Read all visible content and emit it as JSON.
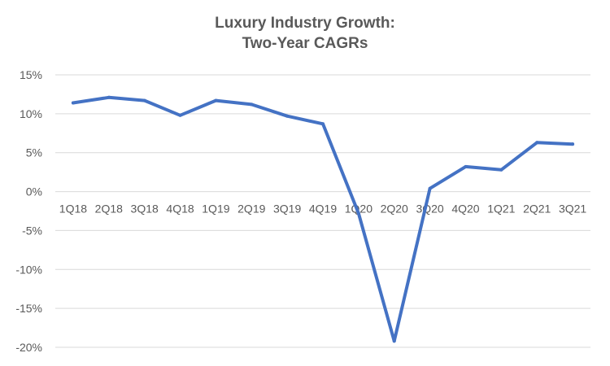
{
  "chart_data": {
    "type": "line",
    "title_lines": [
      "Luxury Industry Growth:",
      "Two-Year CAGRs"
    ],
    "xlabel": "",
    "ylabel": "",
    "categories": [
      "1Q18",
      "2Q18",
      "3Q18",
      "4Q18",
      "1Q19",
      "2Q19",
      "3Q19",
      "4Q19",
      "1Q20",
      "2Q20",
      "3Q20",
      "4Q20",
      "1Q21",
      "2Q21",
      "3Q21"
    ],
    "series": [
      {
        "values": [
          11.4,
          12.1,
          11.7,
          9.8,
          11.7,
          11.2,
          9.7,
          8.7,
          -2.8,
          -19.2,
          0.4,
          3.2,
          2.8,
          6.3,
          6.1
        ]
      }
    ],
    "ylim": [
      -20,
      15
    ],
    "yticks": [
      15,
      10,
      5,
      0,
      -5,
      -10,
      -15,
      -20
    ],
    "ytick_labels": [
      "15%",
      "10%",
      "5%",
      "0%",
      "-5%",
      "-10%",
      "-15%",
      "-20%"
    ],
    "grid": true,
    "legend": "none",
    "colors": {
      "line": "#4472C4",
      "grid": "#D9D9D9",
      "text": "#595959",
      "title": "#595959"
    }
  }
}
